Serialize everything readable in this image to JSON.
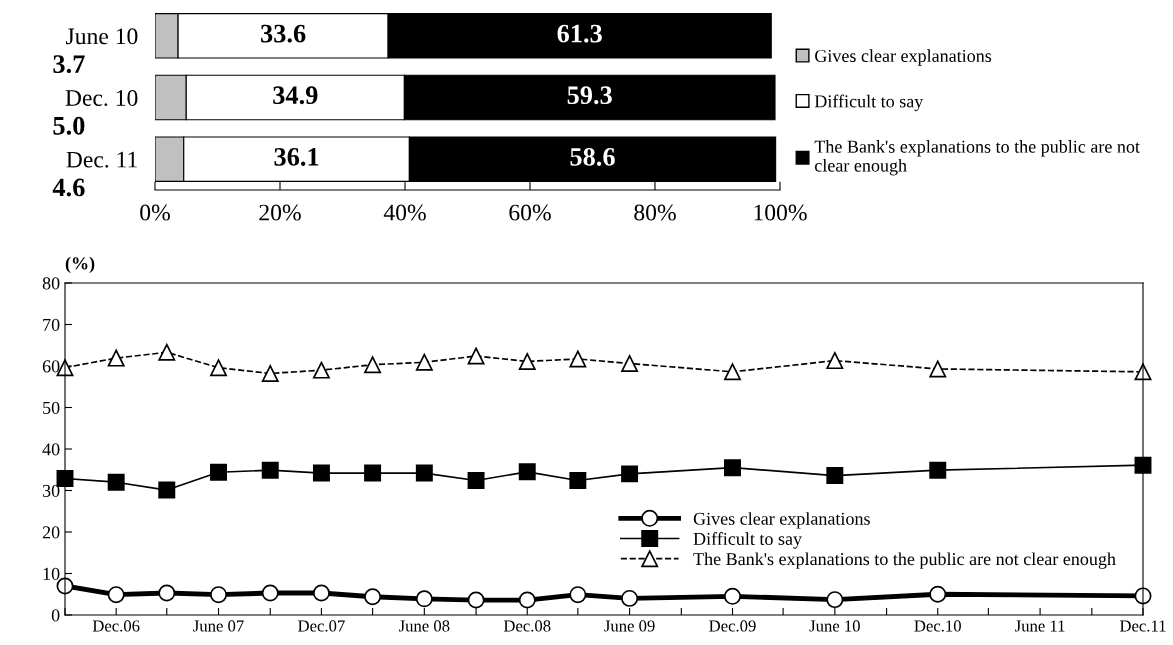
{
  "chart_data": [
    {
      "type": "bar",
      "orientation": "horizontal",
      "stacked": true,
      "categories": [
        "June 10",
        "Dec. 10",
        "Dec. 11"
      ],
      "series": [
        {
          "name": "Gives clear explanations",
          "color": "#c0c0c0",
          "values": [
            3.7,
            5.0,
            4.6
          ],
          "value_labels": [
            "3.7",
            "5.0",
            "4.6"
          ]
        },
        {
          "name": "Difficult to say",
          "color": "#ffffff",
          "values": [
            33.6,
            34.9,
            36.1
          ],
          "value_labels": [
            "33.6",
            "34.9",
            "36.1"
          ]
        },
        {
          "name": "The Bank's explanations to the public are not clear enough",
          "color": "#000000",
          "values": [
            61.3,
            59.3,
            58.6
          ],
          "value_labels": [
            "61.3",
            "59.3",
            "58.6"
          ]
        }
      ],
      "xlim": [
        0,
        100
      ],
      "xticks": [
        {
          "value": 0,
          "label": "0%"
        },
        {
          "value": 20,
          "label": "20%"
        },
        {
          "value": 40,
          "label": "40%"
        },
        {
          "value": 60,
          "label": "60%"
        },
        {
          "value": 80,
          "label": "80%"
        },
        {
          "value": 100,
          "label": "100%"
        }
      ],
      "legend": "right",
      "grid": false
    },
    {
      "type": "line",
      "ylabel": "(%)",
      "x": [
        "2006-09",
        "2006-12",
        "2007-03",
        "2007-06",
        "2007-09",
        "2007-12",
        "2008-03",
        "2008-06",
        "2008-09",
        "2008-12",
        "2009-03",
        "2009-06",
        "2009-12",
        "2010-06",
        "2010-12",
        "2011-12"
      ],
      "series": [
        {
          "name": "Gives clear explanations",
          "color": "#000000",
          "marker": "circle",
          "line_style": "solid",
          "values": [
            7.0,
            4.9,
            5.3,
            4.9,
            5.3,
            5.3,
            4.4,
            3.9,
            3.6,
            3.6,
            4.9,
            4.0,
            4.5,
            3.7,
            5.0,
            4.6
          ]
        },
        {
          "name": "Difficult to say",
          "color": "#000000",
          "marker": "square",
          "line_style": "solid",
          "values": [
            32.9,
            32.0,
            30.1,
            34.4,
            34.9,
            34.2,
            34.2,
            34.2,
            32.4,
            34.5,
            32.4,
            34.0,
            35.5,
            33.6,
            34.9,
            36.1
          ]
        },
        {
          "name": "The Bank's explanations to the public are not clear enough",
          "color": "#000000",
          "marker": "triangle",
          "line_style": "dashed",
          "values": [
            59.6,
            61.9,
            63.3,
            59.6,
            58.2,
            59.0,
            60.3,
            60.9,
            62.4,
            61.1,
            61.7,
            60.6,
            58.6,
            61.3,
            59.3,
            58.6
          ]
        }
      ],
      "xlim": [
        "2006-09",
        "2011-12"
      ],
      "xticks": [
        {
          "value": "2006-09",
          "label": null
        },
        {
          "value": "2006-12",
          "label": "Dec.06"
        },
        {
          "value": "2007-03",
          "label": null
        },
        {
          "value": "2007-06",
          "label": "June 07"
        },
        {
          "value": "2007-09",
          "label": null
        },
        {
          "value": "2007-12",
          "label": "Dec.07"
        },
        {
          "value": "2008-03",
          "label": null
        },
        {
          "value": "2008-06",
          "label": "June 08"
        },
        {
          "value": "2008-09",
          "label": null
        },
        {
          "value": "2008-12",
          "label": "Dec.08"
        },
        {
          "value": "2009-03",
          "label": null
        },
        {
          "value": "2009-06",
          "label": "June 09"
        },
        {
          "value": "2009-09",
          "label": null
        },
        {
          "value": "2009-12",
          "label": "Dec.09"
        },
        {
          "value": "2010-03",
          "label": null
        },
        {
          "value": "2010-06",
          "label": "June 10"
        },
        {
          "value": "2010-09",
          "label": null
        },
        {
          "value": "2010-12",
          "label": "Dec.10"
        },
        {
          "value": "2011-03",
          "label": null
        },
        {
          "value": "2011-06",
          "label": "June 11"
        },
        {
          "value": "2011-09",
          "label": null
        },
        {
          "value": "2011-12",
          "label": "Dec.11"
        }
      ],
      "ylim": [
        0,
        80
      ],
      "yticks": [
        0,
        10,
        20,
        30,
        40,
        50,
        60,
        70,
        80
      ],
      "legend": "bottom right",
      "grid": false
    }
  ]
}
